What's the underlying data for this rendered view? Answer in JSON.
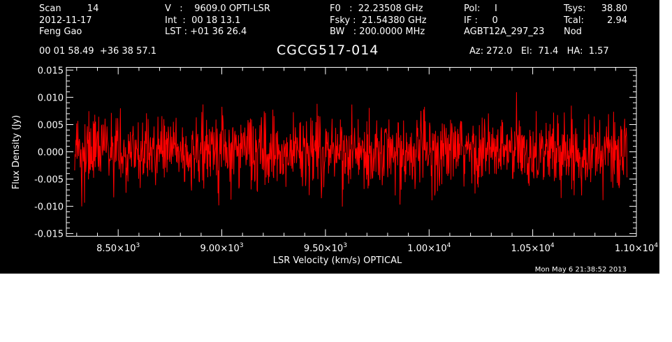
{
  "header": {
    "col1": {
      "scan": "Scan         14",
      "date": "2012-11-17",
      "observer": "Feng Gao"
    },
    "col2": {
      "velocity": "V   :    9609.0 OPTI-LSR",
      "int": "Int  :  00 18 13.1",
      "lst": "LST : +01 36 26.4"
    },
    "col3": {
      "f0": "F0   :  22.23508 GHz",
      "fsky": "Fsky :  21.54380 GHz",
      "bw": "BW   : 200.0000 MHz"
    },
    "col4": {
      "pol": "Pol:     I",
      "if": "IF :     0",
      "project": "AGBT12A_297_23"
    },
    "col5": {
      "tsys_label": "Tsys:",
      "tsys_value": "38.80",
      "tcal_label": "Tcal:",
      "tcal_value": "2.94",
      "mode": "Nod"
    },
    "coords": "00 01 58.49  +36 38 57.1",
    "source": "CGCG517-014",
    "azel": "Az: 272.0   El:  71.4   HA:  1.57",
    "timestamp": "Mon May  6 21:38:52 2013"
  },
  "chart_data": {
    "type": "line",
    "title": "CGCG517-014",
    "xlabel": "LSR Velocity (km/s) OPTICAL",
    "ylabel": "Flux Density (Jy)",
    "xlim": [
      8250,
      11000
    ],
    "ylim": [
      -0.0155,
      0.0155
    ],
    "x_range_data": [
      8290,
      10955
    ],
    "x_ticks": [
      {
        "mant": "8.50",
        "exp": "3"
      },
      {
        "mant": "9.00",
        "exp": "3"
      },
      {
        "mant": "9.50",
        "exp": "3"
      },
      {
        "mant": "1.00",
        "exp": "4"
      },
      {
        "mant": "1.05",
        "exp": "4"
      },
      {
        "mant": "1.10",
        "exp": "4"
      }
    ],
    "y_ticks": [
      "0.015",
      "0.010",
      "0.005",
      "0.000",
      "-0.005",
      "-0.010",
      "-0.015"
    ],
    "series": [
      {
        "color": "#ff0000",
        "noise_rms": 0.0033,
        "mean": 0.0,
        "n_points": 1400
      }
    ],
    "grid": false,
    "colors": {
      "background": "#000000",
      "foreground": "#ffffff",
      "trace": "#ff0000"
    }
  }
}
